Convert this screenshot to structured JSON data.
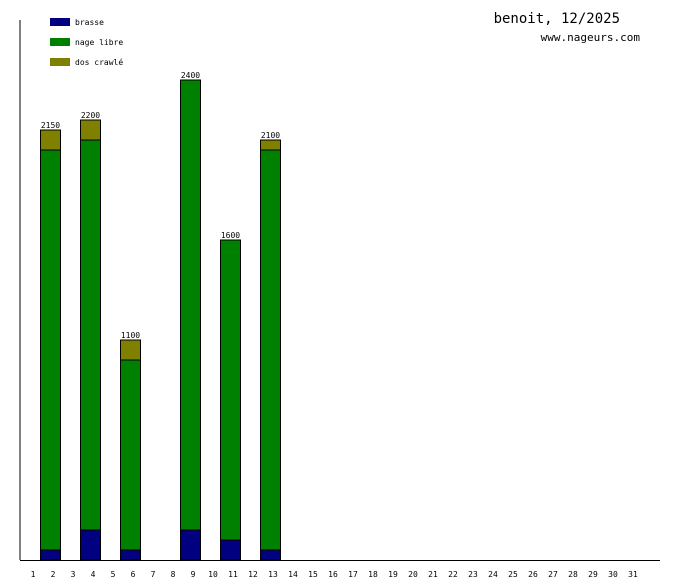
{
  "chart_data": {
    "type": "bar",
    "stacked": true,
    "title": "benoit, 12/2025",
    "subtitle": "www.nageurs.com",
    "legend_position": "top-left",
    "categories": [
      "1",
      "2",
      "3",
      "4",
      "5",
      "6",
      "7",
      "8",
      "9",
      "10",
      "11",
      "12",
      "13",
      "14",
      "15",
      "16",
      "17",
      "18",
      "19",
      "20",
      "21",
      "22",
      "23",
      "24",
      "25",
      "26",
      "27",
      "28",
      "29",
      "30",
      "31"
    ],
    "series": [
      {
        "name": "brasse",
        "color": "#000080",
        "values": [
          0,
          50,
          0,
          150,
          0,
          50,
          0,
          0,
          150,
          0,
          100,
          0,
          50,
          0,
          0,
          0,
          0,
          0,
          0,
          0,
          0,
          0,
          0,
          0,
          0,
          0,
          0,
          0,
          0,
          0,
          0
        ]
      },
      {
        "name": "nage libre",
        "color": "#008000",
        "values": [
          0,
          2000,
          0,
          1950,
          0,
          950,
          0,
          0,
          2250,
          0,
          1500,
          0,
          2000,
          0,
          0,
          0,
          0,
          0,
          0,
          0,
          0,
          0,
          0,
          0,
          0,
          0,
          0,
          0,
          0,
          0,
          0
        ]
      },
      {
        "name": "dos crawlé",
        "color": "#808000",
        "values": [
          0,
          100,
          0,
          100,
          0,
          100,
          0,
          0,
          0,
          0,
          0,
          0,
          50,
          0,
          0,
          0,
          0,
          0,
          0,
          0,
          0,
          0,
          0,
          0,
          0,
          0,
          0,
          0,
          0,
          0,
          0
        ]
      }
    ],
    "totals": [
      {
        "category": "2",
        "label": "2150"
      },
      {
        "category": "4",
        "label": "2200"
      },
      {
        "category": "6",
        "label": "1100"
      },
      {
        "category": "9",
        "label": "2400"
      },
      {
        "category": "11",
        "label": "1600"
      },
      {
        "category": "13",
        "label": "2100"
      }
    ],
    "ylim": [
      0,
      2400
    ],
    "grid": false
  }
}
